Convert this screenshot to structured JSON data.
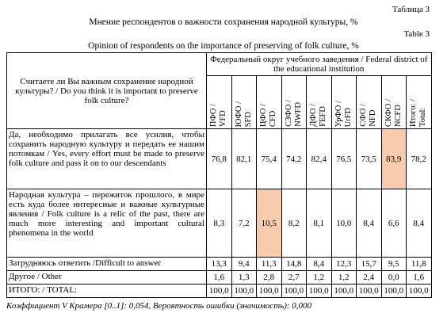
{
  "caption_ru": "Таблица 3",
  "title_ru": "Мнение респондентов о важности сохранения народной культуры, %",
  "caption_en": "Table 3",
  "title_en": "Opinion of respondents on the importance of preserving of folk culture, %",
  "table": {
    "question": "Считаете ли Вы важным сохранение народной культуры? / Do you think it is important to preserve folk culture?",
    "group_header": "Федеральный округ учебного заведения / Federal district of the educational institution",
    "columns": [
      {
        "ru": "ПФО /",
        "en": "VFD"
      },
      {
        "ru": "ЮФО /",
        "en": "SFD"
      },
      {
        "ru": "ЦФО /",
        "en": "CFD"
      },
      {
        "ru": "СЗФО /",
        "en": "NWFD"
      },
      {
        "ru": "ДФО /",
        "en": "FEFD"
      },
      {
        "ru": "УрФО /",
        "en": "UrFD"
      },
      {
        "ru": "СФО /",
        "en": "NFD"
      },
      {
        "ru": "СКФО /",
        "en": "NCFD"
      },
      {
        "ru": "Итого: /",
        "en": "Total:"
      }
    ],
    "rows": [
      {
        "label": "Да, необходимо прилагать все усилия, чтобы сохранить народную культуру и передать ее нашим потомкам / Yes, every effort must be made to preserve folk culture and pass it on to our descendants",
        "values": [
          "76,8",
          "82,1",
          "75,4",
          "74,2",
          "82,4",
          "76,5",
          "73,5",
          "83,9",
          "78,2"
        ]
      },
      {
        "label": "Народная культура – пережиток прошлого, в мире есть куда более интересные и важные культурные явления / Folk culture is a relic of the past, there are much more interesting and important cultural phenomena in the world",
        "values": [
          "8,3",
          "7,2",
          "10,5",
          "8,2",
          "8,1",
          "10,0",
          "8,4",
          "6,6",
          "8,4"
        ]
      },
      {
        "label": "Затрудняюсь ответить /Difficult to answer",
        "values": [
          "13,3",
          "9,4",
          "11,3",
          "14,8",
          "8,4",
          "12,3",
          "15,7",
          "9,5",
          "11,8"
        ]
      },
      {
        "label": "Другое / Other",
        "values": [
          "1,6",
          "1,3",
          "2,8",
          "2,7",
          "1,2",
          "1,2",
          "2,4",
          "0,0",
          "1,6"
        ]
      },
      {
        "label": "ИТОГО: / TOTAL:",
        "values": [
          "100,0",
          "100,0",
          "100,0",
          "100,0",
          "100,0",
          "100,0",
          "100,0",
          "100,0",
          "100,0"
        ]
      }
    ],
    "highlight_color": "#f8cbad",
    "highlighted_cells": [
      [
        0,
        7
      ],
      [
        1,
        2
      ]
    ]
  },
  "footnote": "Коэффициент V Крамера [0..1]: 0,054, Вероятность ошибки (значимость): 0,000"
}
